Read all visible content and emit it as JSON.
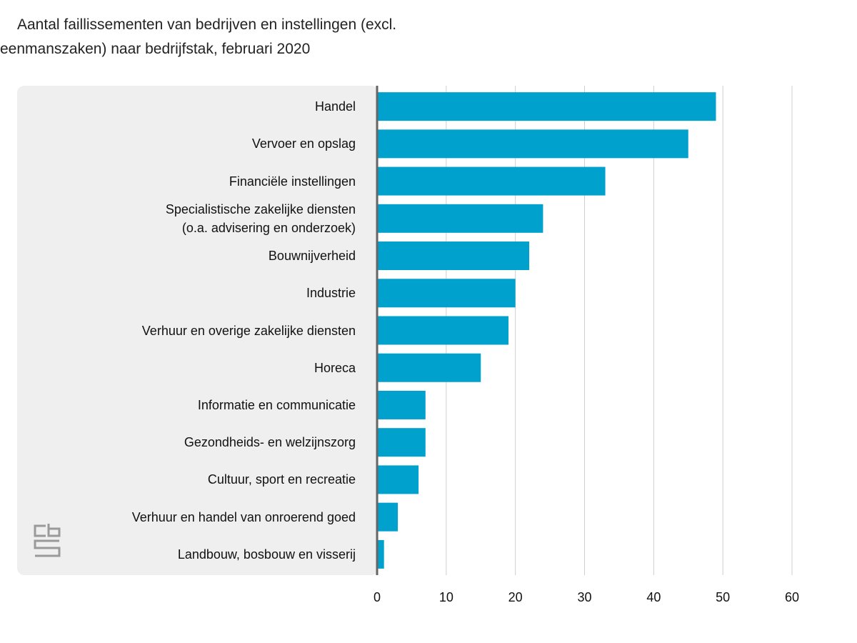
{
  "chart_data": {
    "type": "barh",
    "title": "Aantal faillissementen van bedrijven en instellingen (excl. eenmanszaken) naar bedrijfstak, februari 2020",
    "categories": [
      "Handel",
      "Vervoer en opslag",
      "Financiële instellingen",
      "Specialistische zakelijke diensten\n(o.a. advisering en onderzoek)",
      "Bouwnijverheid",
      "Industrie",
      "Verhuur en overige zakelijke diensten",
      "Horeca",
      "Informatie en communicatie",
      "Gezondheids- en welzijnszorg",
      "Cultuur, sport en recreatie",
      "Verhuur en handel van onroerend goed",
      "Landbouw, bosbouw en visserij"
    ],
    "values": [
      49,
      45,
      33,
      24,
      22,
      20,
      19,
      15,
      7,
      7,
      6,
      3,
      1
    ],
    "color": "#00a1cd",
    "xlim": [
      0,
      60
    ],
    "xticks": [
      0,
      10,
      20,
      30,
      40,
      50,
      60
    ],
    "grid": true
  }
}
